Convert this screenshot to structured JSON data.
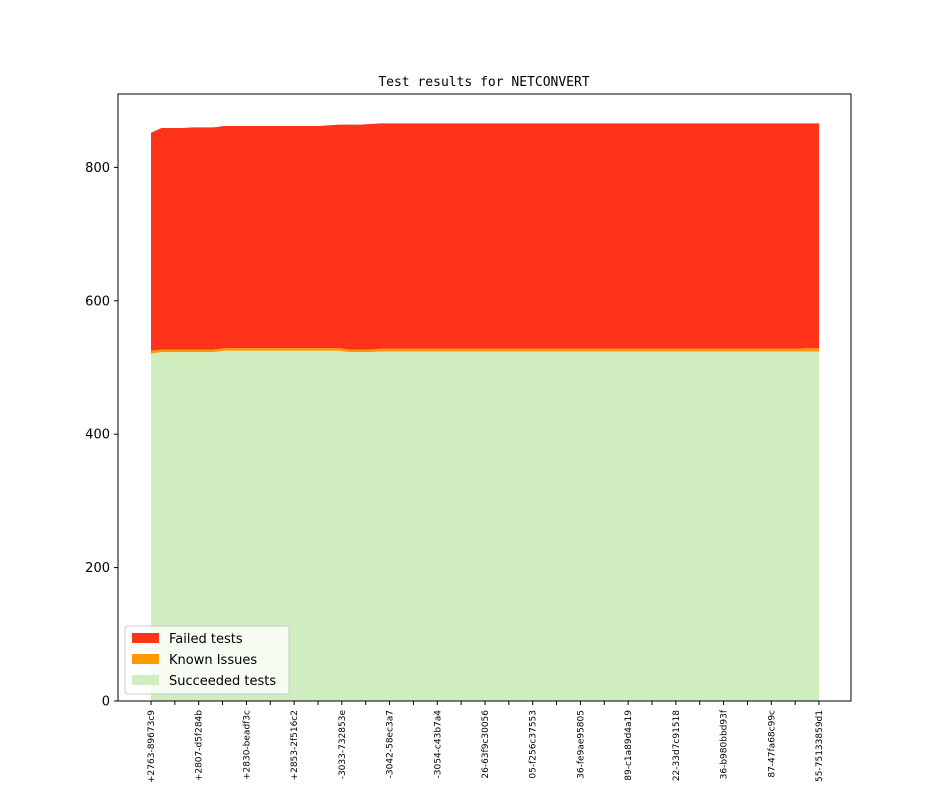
{
  "chart_data": {
    "type": "area",
    "stacked": true,
    "title": "Test results for NETCONVERT",
    "xlabel": "",
    "ylabel": "",
    "ylim": [
      0,
      910
    ],
    "yticks": [
      0,
      200,
      400,
      600,
      800
    ],
    "grid": false,
    "legend_position": "bottom-left",
    "x_tick_labels": [
      "+2763-89673c9",
      "+2807-d5f284b",
      "+2830-beadf3c",
      "+2853-2f516c2",
      "-3033-732853e",
      "-3042-58ec3a7",
      "-3054-c43b7a4",
      "26-63f9c30056",
      "05-f256c37553",
      "36-fe9ae95805",
      "89-c1a89d4a19",
      "22-33d7c91518",
      "36-b980bbd93f",
      "87-47fa68c99c",
      "55-75133859d1"
    ],
    "series": [
      {
        "name": "Succeeded tests",
        "color": "#cfedbf",
        "values": [
          521,
          523,
          523,
          523,
          523,
          523,
          523,
          525,
          525,
          525,
          525,
          525,
          525,
          525,
          525,
          525,
          525,
          525,
          525,
          523,
          523,
          523,
          524,
          524,
          524,
          524,
          524,
          524,
          524,
          524,
          524,
          524,
          524,
          524,
          524,
          524,
          524,
          524,
          524,
          524,
          524,
          524,
          524,
          524,
          524,
          524,
          524,
          524,
          524,
          524,
          524,
          524,
          524,
          524,
          524,
          524,
          524,
          524,
          524,
          524,
          524,
          524,
          524,
          524,
          524
        ]
      },
      {
        "name": "Known Issues",
        "color": "#ff9900",
        "values": [
          4,
          4,
          4,
          4,
          4,
          4,
          4,
          4,
          4,
          4,
          4,
          4,
          4,
          4,
          4,
          4,
          4,
          4,
          4,
          4,
          4,
          4,
          4,
          4,
          4,
          4,
          4,
          4,
          4,
          4,
          4,
          4,
          4,
          4,
          4,
          4,
          4,
          4,
          4,
          4,
          4,
          4,
          4,
          4,
          4,
          4,
          4,
          4,
          4,
          4,
          4,
          4,
          4,
          4,
          4,
          4,
          4,
          4,
          4,
          4,
          4,
          4,
          4,
          5,
          5
        ]
      },
      {
        "name": "Failed tests",
        "color": "#ff321a",
        "values": [
          327,
          332,
          332,
          332,
          333,
          333,
          333,
          333,
          333,
          333,
          333,
          333,
          333,
          333,
          333,
          333,
          333,
          334,
          335,
          337,
          337,
          338,
          338,
          338,
          338,
          338,
          338,
          338,
          338,
          338,
          338,
          338,
          338,
          338,
          338,
          338,
          338,
          338,
          338,
          338,
          338,
          338,
          338,
          338,
          338,
          338,
          338,
          338,
          338,
          338,
          338,
          338,
          338,
          338,
          338,
          338,
          338,
          338,
          338,
          338,
          338,
          338,
          338,
          337,
          337
        ]
      }
    ],
    "legend_order": [
      "Failed tests",
      "Known Issues",
      "Succeeded tests"
    ]
  }
}
